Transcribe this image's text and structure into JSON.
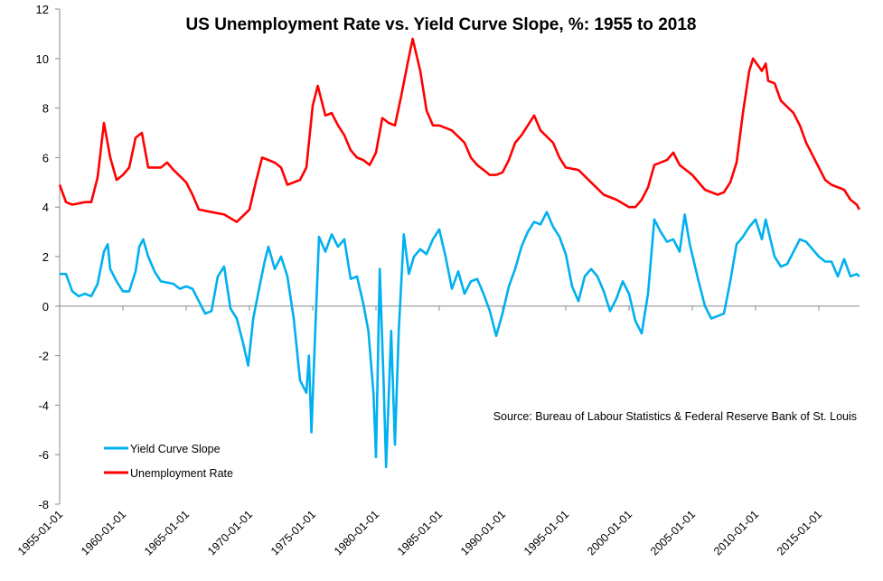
{
  "chart_data": {
    "type": "line",
    "title": "US Unemployment Rate vs. Yield Curve Slope, %: 1955 to 2018",
    "annotation": "Source: Bureau of Labour Statistics & Federal Reserve Bank of St. Louis",
    "ylim": [
      -8,
      12
    ],
    "yticks": [
      "-8",
      "-6",
      "-4",
      "-2",
      "0",
      "2",
      "4",
      "6",
      "8",
      "10",
      "12"
    ],
    "xlim": [
      1955,
      2018.2
    ],
    "xticks": [
      "1955-01-01",
      "1960-01-01",
      "1965-01-01",
      "1970-01-01",
      "1975-01-01",
      "1980-01-01",
      "1985-01-01",
      "1990-01-01",
      "1995-01-01",
      "2000-01-01",
      "2005-01-01",
      "2010-01-01",
      "2015-01-01"
    ],
    "grid": false,
    "legend_position": "bottom-left",
    "series": [
      {
        "name": "Yield Curve Slope",
        "color": "#00b0f0",
        "points": [
          [
            1955,
            1.3
          ],
          [
            1955.5,
            1.3
          ],
          [
            1956,
            0.6
          ],
          [
            1956.5,
            0.4
          ],
          [
            1957,
            0.5
          ],
          [
            1957.5,
            0.4
          ],
          [
            1958,
            0.9
          ],
          [
            1958.5,
            2.2
          ],
          [
            1958.8,
            2.5
          ],
          [
            1959,
            1.5
          ],
          [
            1959.5,
            1.0
          ],
          [
            1960,
            0.6
          ],
          [
            1960.5,
            0.6
          ],
          [
            1961,
            1.4
          ],
          [
            1961.3,
            2.4
          ],
          [
            1961.6,
            2.7
          ],
          [
            1962,
            2.0
          ],
          [
            1962.5,
            1.4
          ],
          [
            1963,
            1.0
          ],
          [
            1964,
            0.9
          ],
          [
            1964.5,
            0.7
          ],
          [
            1965,
            0.8
          ],
          [
            1965.5,
            0.7
          ],
          [
            1966,
            0.2
          ],
          [
            1966.5,
            -0.3
          ],
          [
            1967,
            -0.2
          ],
          [
            1967.5,
            1.2
          ],
          [
            1968,
            1.6
          ],
          [
            1968.5,
            -0.1
          ],
          [
            1969,
            -0.5
          ],
          [
            1969.5,
            -1.5
          ],
          [
            1969.9,
            -2.4
          ],
          [
            1970.3,
            -0.5
          ],
          [
            1970.8,
            0.8
          ],
          [
            1971.2,
            1.8
          ],
          [
            1971.5,
            2.4
          ],
          [
            1972,
            1.5
          ],
          [
            1972.5,
            2.0
          ],
          [
            1973,
            1.2
          ],
          [
            1973.5,
            -0.5
          ],
          [
            1974,
            -3.0
          ],
          [
            1974.5,
            -3.5
          ],
          [
            1974.7,
            -2.0
          ],
          [
            1974.9,
            -5.1
          ],
          [
            1975.2,
            -1.0
          ],
          [
            1975.5,
            2.8
          ],
          [
            1976,
            2.2
          ],
          [
            1976.5,
            2.9
          ],
          [
            1977,
            2.4
          ],
          [
            1977.5,
            2.7
          ],
          [
            1978,
            1.1
          ],
          [
            1978.5,
            1.2
          ],
          [
            1979,
            0.1
          ],
          [
            1979.4,
            -1.0
          ],
          [
            1979.8,
            -3.5
          ],
          [
            1980,
            -6.1
          ],
          [
            1980.3,
            1.5
          ],
          [
            1980.6,
            -3.0
          ],
          [
            1980.8,
            -6.5
          ],
          [
            1981.2,
            -1.0
          ],
          [
            1981.5,
            -5.6
          ],
          [
            1981.8,
            -1.0
          ],
          [
            1982.2,
            2.9
          ],
          [
            1982.6,
            1.3
          ],
          [
            1983,
            2.0
          ],
          [
            1983.5,
            2.3
          ],
          [
            1984,
            2.1
          ],
          [
            1984.5,
            2.7
          ],
          [
            1985,
            3.1
          ],
          [
            1985.5,
            2.0
          ],
          [
            1986,
            0.7
          ],
          [
            1986.5,
            1.4
          ],
          [
            1987,
            0.5
          ],
          [
            1987.5,
            1.0
          ],
          [
            1988,
            1.1
          ],
          [
            1988.5,
            0.5
          ],
          [
            1989,
            -0.2
          ],
          [
            1989.5,
            -1.2
          ],
          [
            1990,
            -0.3
          ],
          [
            1990.5,
            0.8
          ],
          [
            1991,
            1.5
          ],
          [
            1991.5,
            2.4
          ],
          [
            1992,
            3.0
          ],
          [
            1992.5,
            3.4
          ],
          [
            1993,
            3.3
          ],
          [
            1993.5,
            3.8
          ],
          [
            1994,
            3.2
          ],
          [
            1994.5,
            2.8
          ],
          [
            1995,
            2.1
          ],
          [
            1995.5,
            0.8
          ],
          [
            1996,
            0.2
          ],
          [
            1996.5,
            1.2
          ],
          [
            1997,
            1.5
          ],
          [
            1997.5,
            1.2
          ],
          [
            1998,
            0.6
          ],
          [
            1998.5,
            -0.2
          ],
          [
            1999,
            0.3
          ],
          [
            1999.5,
            1.0
          ],
          [
            2000,
            0.5
          ],
          [
            2000.5,
            -0.6
          ],
          [
            2001,
            -1.1
          ],
          [
            2001.5,
            0.5
          ],
          [
            2002,
            3.5
          ],
          [
            2002.5,
            3.0
          ],
          [
            2003,
            2.6
          ],
          [
            2003.5,
            2.7
          ],
          [
            2004,
            2.2
          ],
          [
            2004.4,
            3.7
          ],
          [
            2004.8,
            2.5
          ],
          [
            2005.5,
            1.0
          ],
          [
            2006,
            0.0
          ],
          [
            2006.5,
            -0.5
          ],
          [
            2007,
            -0.4
          ],
          [
            2007.5,
            -0.3
          ],
          [
            2008,
            1.0
          ],
          [
            2008.5,
            2.5
          ],
          [
            2009,
            2.8
          ],
          [
            2009.5,
            3.2
          ],
          [
            2010,
            3.5
          ],
          [
            2010.5,
            2.7
          ],
          [
            2010.8,
            3.5
          ],
          [
            2011.5,
            2.0
          ],
          [
            2012,
            1.6
          ],
          [
            2012.5,
            1.7
          ],
          [
            2013,
            2.2
          ],
          [
            2013.5,
            2.7
          ],
          [
            2014,
            2.6
          ],
          [
            2014.5,
            2.3
          ],
          [
            2015,
            2.0
          ],
          [
            2015.5,
            1.8
          ],
          [
            2016,
            1.8
          ],
          [
            2016.5,
            1.2
          ],
          [
            2017,
            1.9
          ],
          [
            2017.5,
            1.2
          ],
          [
            2018,
            1.3
          ],
          [
            2018.2,
            1.2
          ]
        ]
      },
      {
        "name": "Unemployment Rate",
        "color": "#ff0000",
        "points": [
          [
            1955,
            4.9
          ],
          [
            1955.5,
            4.2
          ],
          [
            1956,
            4.1
          ],
          [
            1957,
            4.2
          ],
          [
            1957.5,
            4.2
          ],
          [
            1958,
            5.2
          ],
          [
            1958.5,
            7.4
          ],
          [
            1959,
            6.0
          ],
          [
            1959.5,
            5.1
          ],
          [
            1960,
            5.3
          ],
          [
            1960.5,
            5.6
          ],
          [
            1961,
            6.8
          ],
          [
            1961.5,
            7.0
          ],
          [
            1962,
            5.6
          ],
          [
            1963,
            5.6
          ],
          [
            1963.5,
            5.8
          ],
          [
            1964,
            5.5
          ],
          [
            1965,
            5.0
          ],
          [
            1965.5,
            4.5
          ],
          [
            1966,
            3.9
          ],
          [
            1967,
            3.8
          ],
          [
            1968,
            3.7
          ],
          [
            1969,
            3.4
          ],
          [
            1970,
            3.9
          ],
          [
            1970.5,
            5.0
          ],
          [
            1971,
            6.0
          ],
          [
            1971.5,
            5.9
          ],
          [
            1972,
            5.8
          ],
          [
            1972.5,
            5.6
          ],
          [
            1973,
            4.9
          ],
          [
            1974,
            5.1
          ],
          [
            1974.5,
            5.6
          ],
          [
            1975,
            8.1
          ],
          [
            1975.4,
            8.9
          ],
          [
            1976,
            7.7
          ],
          [
            1976.5,
            7.8
          ],
          [
            1977,
            7.3
          ],
          [
            1977.5,
            6.9
          ],
          [
            1978,
            6.3
          ],
          [
            1978.5,
            6.0
          ],
          [
            1979,
            5.9
          ],
          [
            1979.5,
            5.7
          ],
          [
            1980,
            6.2
          ],
          [
            1980.5,
            7.6
          ],
          [
            1981,
            7.4
          ],
          [
            1981.5,
            7.3
          ],
          [
            1982,
            8.5
          ],
          [
            1982.5,
            9.8
          ],
          [
            1982.9,
            10.8
          ],
          [
            1983.5,
            9.5
          ],
          [
            1984,
            7.9
          ],
          [
            1984.5,
            7.3
          ],
          [
            1985,
            7.3
          ],
          [
            1986,
            7.1
          ],
          [
            1987,
            6.6
          ],
          [
            1987.5,
            6.0
          ],
          [
            1988,
            5.7
          ],
          [
            1989,
            5.3
          ],
          [
            1989.5,
            5.3
          ],
          [
            1990,
            5.4
          ],
          [
            1990.5,
            5.9
          ],
          [
            1991,
            6.6
          ],
          [
            1991.5,
            6.9
          ],
          [
            1992,
            7.3
          ],
          [
            1992.5,
            7.7
          ],
          [
            1993,
            7.1
          ],
          [
            1994,
            6.6
          ],
          [
            1994.5,
            6.0
          ],
          [
            1995,
            5.6
          ],
          [
            1996,
            5.5
          ],
          [
            1997,
            5.0
          ],
          [
            1998,
            4.5
          ],
          [
            1999,
            4.3
          ],
          [
            2000,
            4.0
          ],
          [
            2000.5,
            4.0
          ],
          [
            2001,
            4.3
          ],
          [
            2001.5,
            4.8
          ],
          [
            2002,
            5.7
          ],
          [
            2003,
            5.9
          ],
          [
            2003.5,
            6.2
          ],
          [
            2004,
            5.7
          ],
          [
            2005,
            5.3
          ],
          [
            2006,
            4.7
          ],
          [
            2007,
            4.5
          ],
          [
            2007.5,
            4.6
          ],
          [
            2008,
            5.0
          ],
          [
            2008.5,
            5.8
          ],
          [
            2009,
            7.8
          ],
          [
            2009.5,
            9.5
          ],
          [
            2009.8,
            10.0
          ],
          [
            2010.5,
            9.5
          ],
          [
            2010.8,
            9.8
          ],
          [
            2011,
            9.1
          ],
          [
            2011.5,
            9.0
          ],
          [
            2012,
            8.3
          ],
          [
            2013,
            7.8
          ],
          [
            2013.5,
            7.3
          ],
          [
            2014,
            6.6
          ],
          [
            2014.5,
            6.1
          ],
          [
            2015,
            5.6
          ],
          [
            2015.5,
            5.1
          ],
          [
            2016,
            4.9
          ],
          [
            2017,
            4.7
          ],
          [
            2017.5,
            4.3
          ],
          [
            2018,
            4.1
          ],
          [
            2018.2,
            3.9
          ]
        ]
      }
    ]
  }
}
